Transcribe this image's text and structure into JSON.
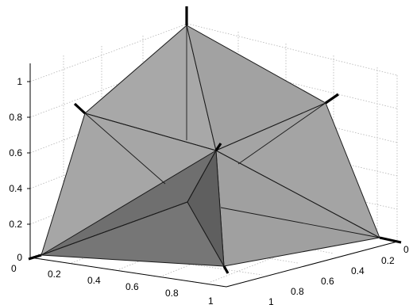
{
  "axes": {
    "z_ticks": [
      "0",
      "0.2",
      "0.4",
      "0.6",
      "0.8",
      "1"
    ],
    "x_ticks": [
      "0",
      "0.2",
      "0.4",
      "0.6",
      "0.8",
      "1"
    ],
    "y_ticks": [
      "0",
      "0.2",
      "0.4",
      "0.6",
      "0.8",
      "1"
    ]
  },
  "colors": {
    "facet_light": "#a6a6a6",
    "facet_dark": "#6f6f6f",
    "facet_darker": "#5f5f5f"
  }
}
